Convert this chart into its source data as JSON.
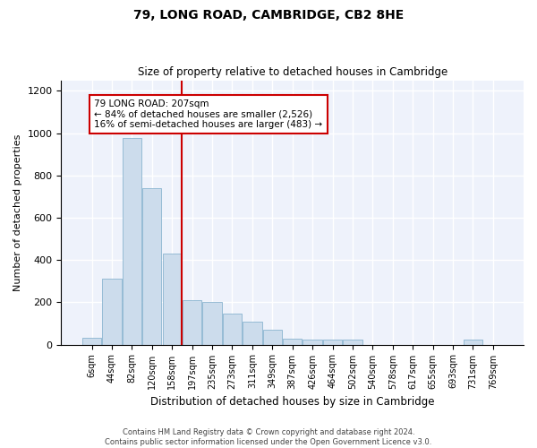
{
  "title": "79, LONG ROAD, CAMBRIDGE, CB2 8HE",
  "subtitle": "Size of property relative to detached houses in Cambridge",
  "xlabel": "Distribution of detached houses by size in Cambridge",
  "ylabel": "Number of detached properties",
  "footer_line1": "Contains HM Land Registry data © Crown copyright and database right 2024.",
  "footer_line2": "Contains public sector information licensed under the Open Government Licence v3.0.",
  "bar_color": "#ccdcec",
  "bar_edge_color": "#7aaac8",
  "annotation_box_color": "#cc0000",
  "vline_color": "#cc0000",
  "categories": [
    "6sqm",
    "44sqm",
    "82sqm",
    "120sqm",
    "158sqm",
    "197sqm",
    "235sqm",
    "273sqm",
    "311sqm",
    "349sqm",
    "387sqm",
    "426sqm",
    "464sqm",
    "502sqm",
    "540sqm",
    "578sqm",
    "617sqm",
    "655sqm",
    "693sqm",
    "731sqm",
    "769sqm"
  ],
  "values": [
    30,
    310,
    975,
    740,
    430,
    210,
    200,
    145,
    110,
    70,
    28,
    25,
    25,
    25,
    0,
    0,
    0,
    0,
    0,
    22,
    0
  ],
  "ylim": [
    0,
    1250
  ],
  "yticks": [
    0,
    200,
    400,
    600,
    800,
    1000,
    1200
  ],
  "vline_position": 5,
  "annotation_text": "79 LONG ROAD: 207sqm\n← 84% of detached houses are smaller (2,526)\n16% of semi-detached houses are larger (483) →",
  "background_color": "#eef2fb"
}
